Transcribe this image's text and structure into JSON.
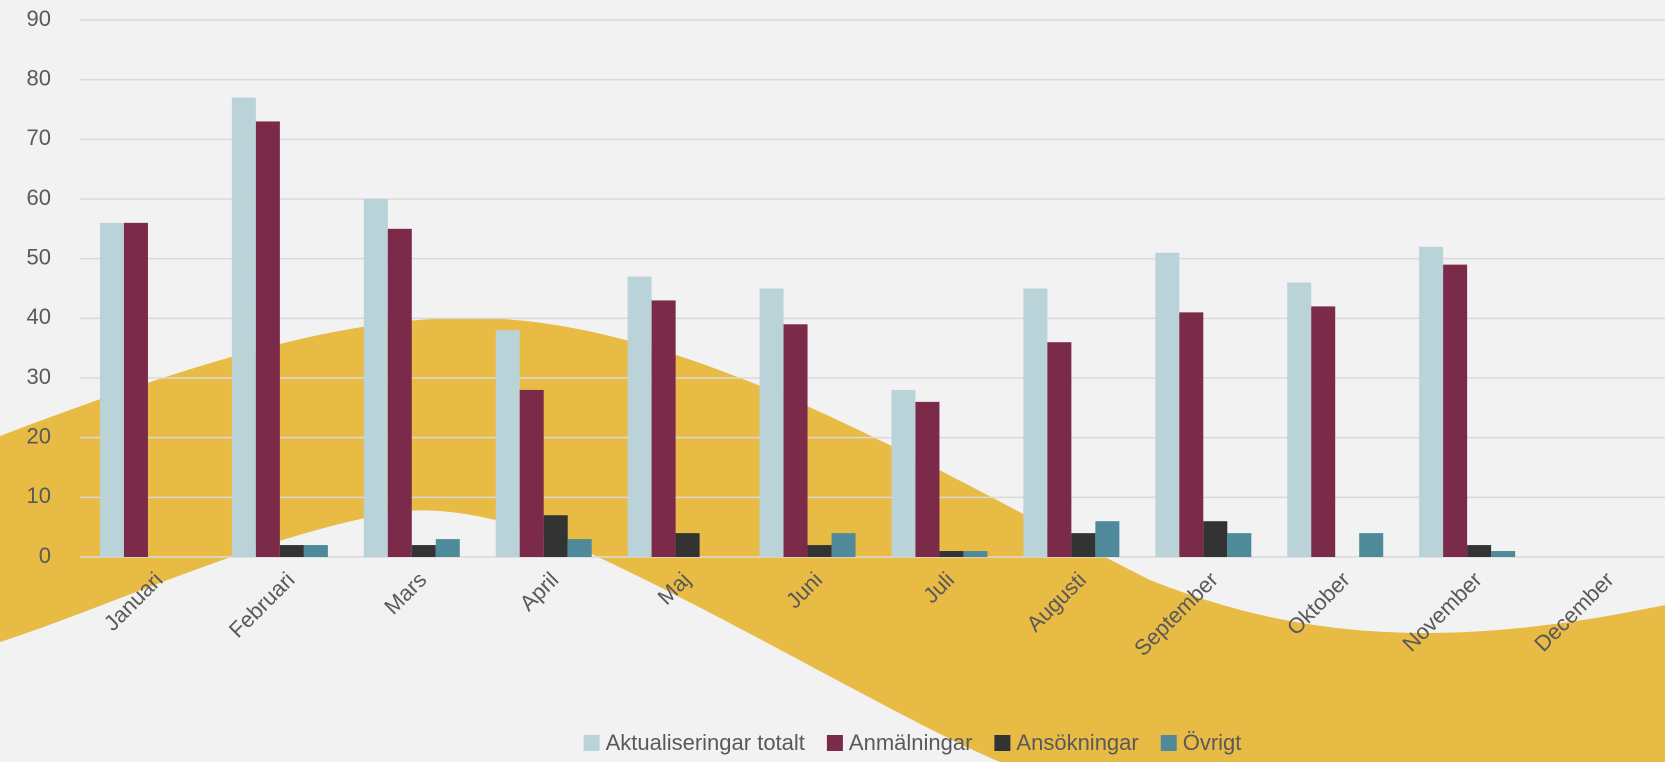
{
  "chart_data": {
    "type": "bar",
    "categories": [
      "Januari",
      "Februari",
      "Mars",
      "April",
      "Maj",
      "Juni",
      "Juli",
      "Augusti",
      "September",
      "Oktober",
      "November",
      "December"
    ],
    "series": [
      {
        "name": "Aktualiseringar totalt",
        "color": "#b9d3d8",
        "values": [
          56,
          77,
          60,
          38,
          47,
          45,
          28,
          45,
          51,
          46,
          52,
          null
        ]
      },
      {
        "name": "Anmälningar",
        "color": "#7b2a49",
        "values": [
          56,
          73,
          55,
          28,
          43,
          39,
          26,
          36,
          41,
          42,
          49,
          null
        ]
      },
      {
        "name": "Ansökningar",
        "color": "#333333",
        "values": [
          0,
          2,
          2,
          7,
          4,
          2,
          1,
          4,
          6,
          0,
          2,
          null
        ]
      },
      {
        "name": "Övrigt",
        "color": "#4e8a99",
        "values": [
          0,
          2,
          3,
          3,
          0,
          4,
          1,
          6,
          4,
          4,
          1,
          null
        ]
      }
    ],
    "ylim": [
      0,
      90
    ],
    "yticks": [
      0,
      10,
      20,
      30,
      40,
      50,
      60,
      70,
      80,
      90
    ],
    "grid": true,
    "legend": "bottom"
  }
}
